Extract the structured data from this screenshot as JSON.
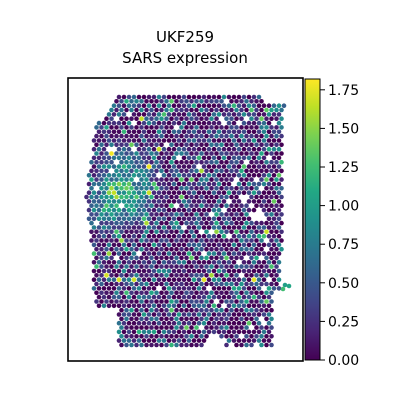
{
  "chart_data": {
    "type": "scatter",
    "title": "UKF259",
    "subtitle": "SARS expression",
    "xlabel": "",
    "ylabel": "",
    "colormap": "viridis",
    "colorbar": {
      "vmin": 0.0,
      "vmax": 1.82,
      "ticks": [
        "0.00",
        "0.25",
        "0.50",
        "0.75",
        "1.00",
        "1.25",
        "1.50",
        "1.75"
      ]
    },
    "grid": false,
    "axes_ticks_shown": false,
    "description_of_values": "hexagonal spot grid, most spots 0.0-0.6, localized cluster of higher values (1.0-1.8) on the left-middle region",
    "hotspots": [
      {
        "x": 0.2,
        "y": 0.4,
        "value": 1.75
      },
      {
        "x": 0.23,
        "y": 0.38,
        "value": 1.6
      },
      {
        "x": 0.26,
        "y": 0.43,
        "value": 1.5
      },
      {
        "x": 0.18,
        "y": 0.45,
        "value": 1.45
      },
      {
        "x": 0.22,
        "y": 0.32,
        "value": 1.3
      },
      {
        "x": 0.29,
        "y": 0.36,
        "value": 1.25
      }
    ],
    "colors": {
      "low": "#440154",
      "mid": "#21918c",
      "high": "#fde725"
    }
  }
}
